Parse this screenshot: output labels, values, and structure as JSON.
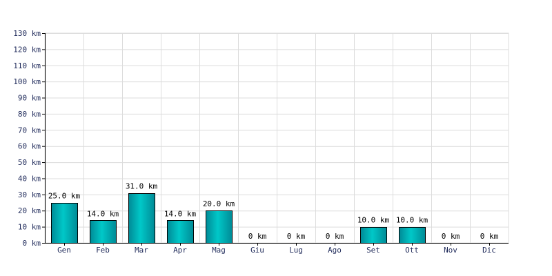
{
  "chart_data": {
    "type": "bar",
    "categories": [
      "Gen",
      "Feb",
      "Mar",
      "Apr",
      "Mag",
      "Giu",
      "Lug",
      "Ago",
      "Set",
      "Ott",
      "Nov",
      "Dic"
    ],
    "values": [
      25,
      14,
      31,
      14,
      20,
      0,
      0,
      0,
      10,
      10,
      0,
      0
    ],
    "data_labels": [
      "25.0 km",
      "14.0 km",
      "31.0 km",
      "14.0 km",
      "20.0 km",
      "0 km",
      "0 km",
      "0 km",
      "10.0 km",
      "10.0 km",
      "0 km",
      "0 km"
    ],
    "y_ticks": [
      0,
      10,
      20,
      30,
      40,
      50,
      60,
      70,
      80,
      90,
      100,
      110,
      120,
      130
    ],
    "y_tick_labels": [
      "0 km",
      "10 km",
      "20 km",
      "30 km",
      "40 km",
      "50 km",
      "60 km",
      "70 km",
      "80 km",
      "90 km",
      "100 km",
      "110 km",
      "120 km",
      "130 km"
    ],
    "ylim": [
      0,
      130
    ],
    "grid": true,
    "bar_color": "#00c8c8",
    "bar_color_dark": "#008a96",
    "grid_color": "#dcdcdc",
    "axis_color": "#000000"
  }
}
